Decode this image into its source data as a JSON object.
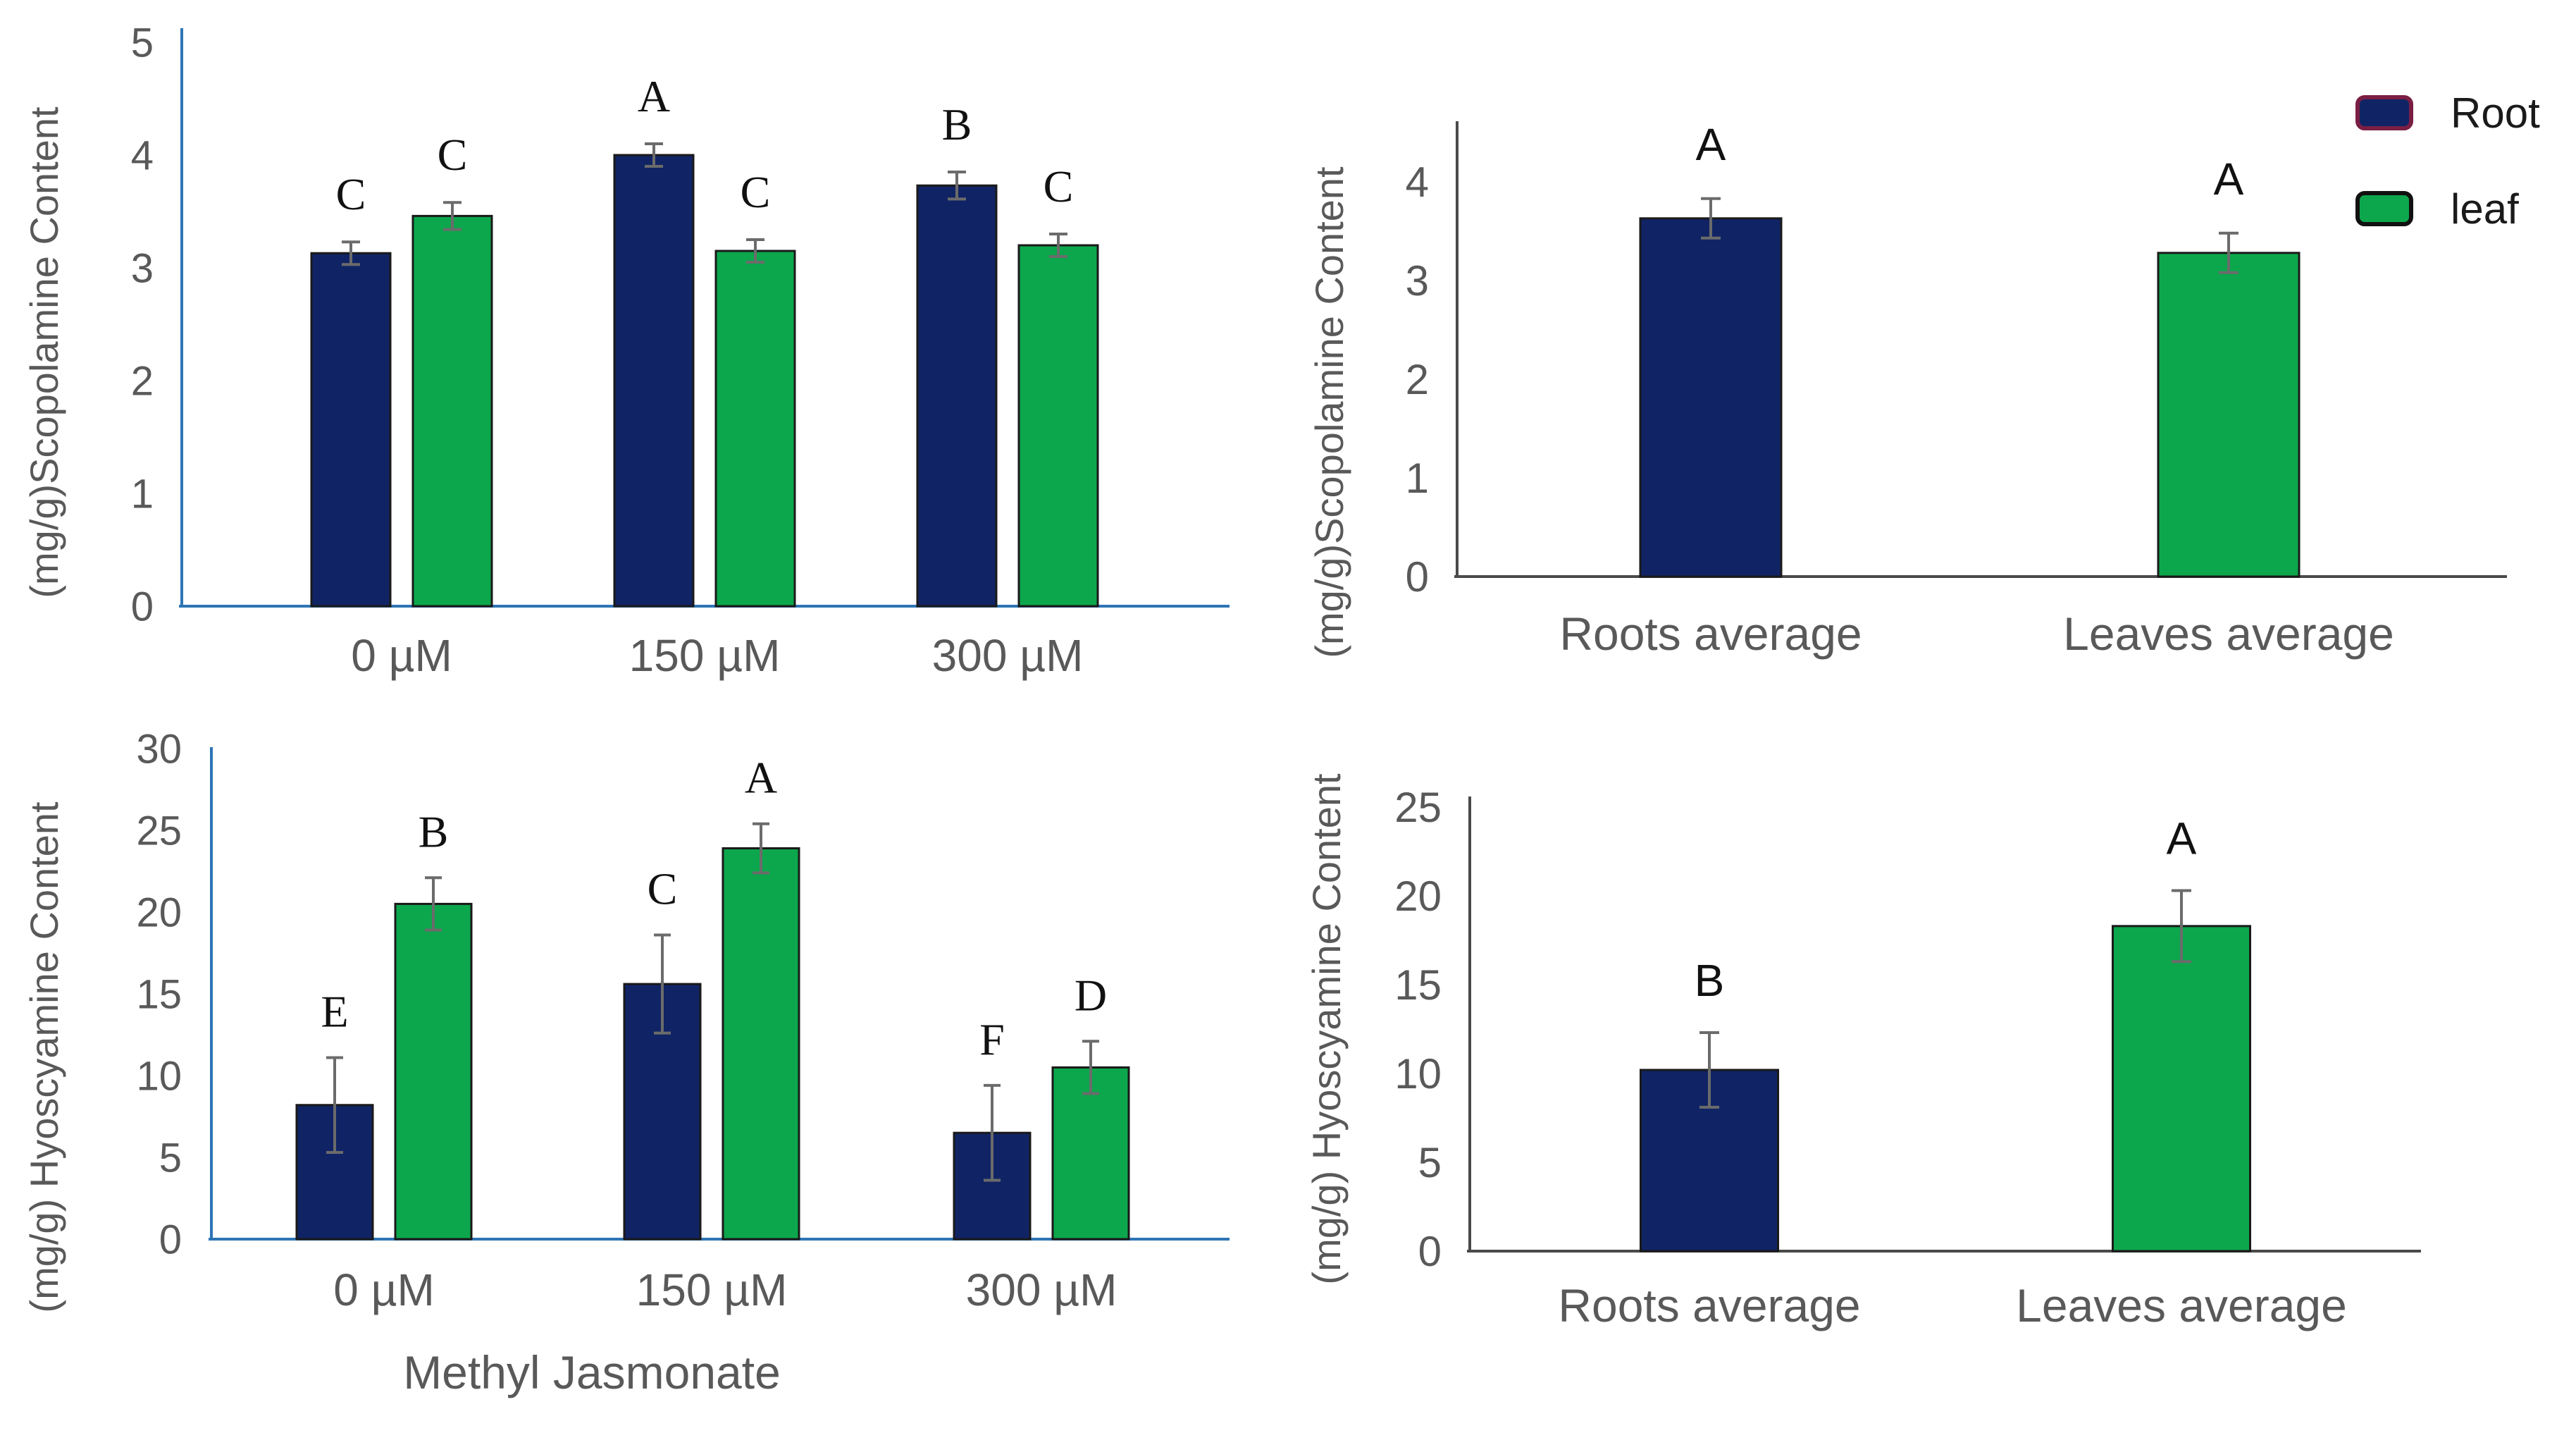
{
  "figure": {
    "background": "#ffffff",
    "colors": {
      "root_fill": "#102465",
      "leaf_fill": "#0CA74C",
      "bar_border": "#1a1a1a",
      "left_axis": "#2E75B6",
      "right_axis": "#4a4a4a",
      "tick_text": "#595959",
      "error_bar": "#6b6b6b",
      "letter_text": "#111111",
      "legend_text": "#1a1a1a",
      "root_legend_border": "#7A1E44",
      "leaf_legend_border": "#111111"
    }
  },
  "legend": {
    "entries": [
      {
        "label": "Root",
        "fill": "#102465",
        "border": "#7A1E44"
      },
      {
        "label": "leaf",
        "fill": "#0CA74C",
        "border": "#111111"
      }
    ]
  },
  "chart_data": [
    {
      "id": "scopolamine-by-treatment",
      "type": "bar",
      "title": "",
      "xlabel": "",
      "ylabel": "(mg/g)Scopolamine Content",
      "categories": [
        "0 µM",
        "150 µM",
        "300 µM"
      ],
      "series": [
        {
          "name": "Root",
          "color": "#102465",
          "values": [
            3.13,
            4.0,
            3.73
          ],
          "errors": [
            0.1,
            0.1,
            0.12
          ],
          "letters": [
            "C",
            "A",
            "B"
          ]
        },
        {
          "name": "leaf",
          "color": "#0CA74C",
          "values": [
            3.46,
            3.15,
            3.2
          ],
          "errors": [
            0.12,
            0.1,
            0.1
          ],
          "letters": [
            "C",
            "C",
            "C"
          ]
        }
      ],
      "ylim": [
        0,
        5.1
      ],
      "yticks": [
        0,
        1,
        2,
        3,
        4,
        5
      ],
      "grid": false,
      "legend_position": "none",
      "axis_color": "#2E75B6",
      "letter_font": "serif"
    },
    {
      "id": "scopolamine-averages",
      "type": "bar",
      "title": "",
      "xlabel": "",
      "ylabel": "(mg/g)Scopolamine Content",
      "categories": [
        "Roots average",
        "Leaves average"
      ],
      "series": [
        {
          "name": "Root",
          "color": "#102465",
          "values": [
            3.63,
            null
          ],
          "errors": [
            0.2,
            null
          ],
          "letters": [
            "A",
            null
          ]
        },
        {
          "name": "leaf",
          "color": "#0CA74C",
          "values": [
            null,
            3.28
          ],
          "errors": [
            null,
            0.2
          ],
          "letters": [
            null,
            "A"
          ]
        }
      ],
      "ylim": [
        0,
        4.6
      ],
      "yticks": [
        0,
        1,
        2,
        3,
        4
      ],
      "grid": false,
      "legend_position": "top-right",
      "axis_color": "#4a4a4a",
      "letter_font": "sans"
    },
    {
      "id": "hyoscyamine-by-treatment",
      "type": "bar",
      "title": "",
      "xlabel": "Methyl Jasmonate",
      "ylabel": "(mg/g) Hyoscyamine Content",
      "categories": [
        "0 µM",
        "150 µM",
        "300 µM"
      ],
      "series": [
        {
          "name": "Root",
          "color": "#102465",
          "values": [
            8.2,
            15.6,
            6.5
          ],
          "errors": [
            2.9,
            3.0,
            2.9
          ],
          "letters": [
            "E",
            "C",
            "F"
          ]
        },
        {
          "name": "leaf",
          "color": "#0CA74C",
          "values": [
            20.5,
            23.9,
            10.5
          ],
          "errors": [
            1.6,
            1.5,
            1.6
          ],
          "letters": [
            "B",
            "A",
            "D"
          ]
        }
      ],
      "ylim": [
        0,
        30.1
      ],
      "yticks": [
        0,
        5,
        10,
        15,
        20,
        25,
        30
      ],
      "grid": false,
      "legend_position": "none",
      "axis_color": "#2E75B6",
      "letter_font": "serif"
    },
    {
      "id": "hyoscyamine-averages",
      "type": "bar",
      "title": "",
      "xlabel": "",
      "ylabel": "(mg/g) Hyoscyamine Content",
      "categories": [
        "Roots average",
        "Leaves average"
      ],
      "series": [
        {
          "name": "Root",
          "color": "#102465",
          "values": [
            10.2,
            null
          ],
          "errors": [
            2.1,
            null
          ],
          "letters": [
            "B",
            null
          ]
        },
        {
          "name": "leaf",
          "color": "#0CA74C",
          "values": [
            null,
            18.3
          ],
          "errors": [
            null,
            2.0
          ],
          "letters": [
            null,
            "A"
          ]
        }
      ],
      "ylim": [
        0,
        25.6
      ],
      "yticks": [
        0,
        5,
        10,
        15,
        20,
        25
      ],
      "grid": false,
      "legend_position": "none",
      "axis_color": "#4a4a4a",
      "letter_font": "sans"
    }
  ]
}
